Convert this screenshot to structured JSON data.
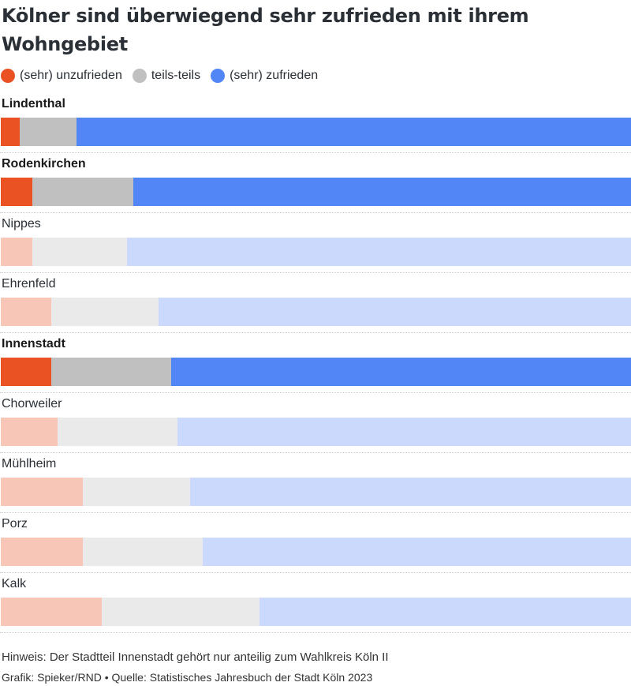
{
  "title": "Kölner sind überwiegend sehr zufrieden mit ihrem Wohngebiet",
  "colors": {
    "unzufrieden": "#ea5123",
    "teils": "#c0c0c0",
    "zufrieden": "#5286f7",
    "unzufrieden_light": "#f8c6b6",
    "teils_light": "#eaeaea",
    "zufrieden_light": "#cad9fc"
  },
  "legend": [
    {
      "label": "(sehr) unzufrieden",
      "color": "#ea5123"
    },
    {
      "label": "teils-teils",
      "color": "#c0c0c0"
    },
    {
      "label": "(sehr) zufrieden",
      "color": "#5286f7"
    }
  ],
  "chart_data": {
    "type": "bar",
    "orientation": "horizontal",
    "stacked": true,
    "percent": true,
    "categories": [
      "Lindenthal",
      "Rodenkirchen",
      "Nippes",
      "Ehrenfeld",
      "Innenstadt",
      "Chorweiler",
      "Mühlheim",
      "Porz",
      "Kalk"
    ],
    "highlighted": [
      true,
      true,
      false,
      false,
      true,
      false,
      false,
      false,
      false
    ],
    "series": [
      {
        "name": "(sehr) unzufrieden",
        "values": [
          3,
          5,
          5,
          8,
          8,
          9,
          13,
          13,
          16
        ]
      },
      {
        "name": "teils-teils",
        "values": [
          9,
          16,
          15,
          17,
          19,
          19,
          17,
          19,
          25
        ]
      },
      {
        "name": "(sehr) zufrieden",
        "values": [
          88,
          79,
          80,
          75,
          73,
          72,
          70,
          68,
          59
        ]
      }
    ],
    "xlim": [
      0,
      100
    ],
    "legend_position": "top-left"
  },
  "footer": {
    "note": "Hinweis: Der Stadtteil Innenstadt gehört nur anteilig zum Wahlkreis Köln II",
    "credit": "Grafik: Spieker/RND • Quelle: Statistisches Jahresbuch der Stadt Köln 2023"
  }
}
